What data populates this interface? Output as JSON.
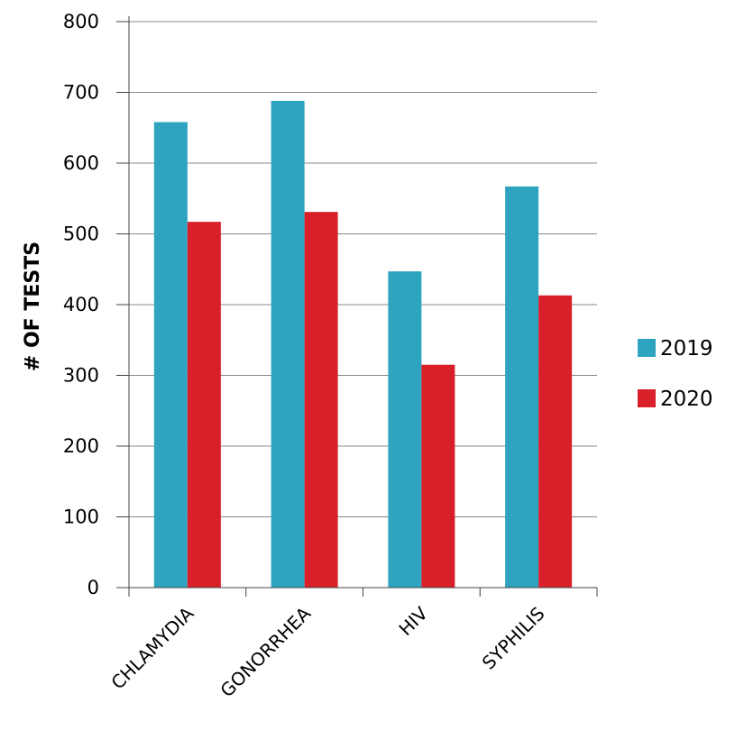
{
  "chart_data": {
    "type": "bar",
    "title": "",
    "xlabel": "",
    "ylabel": "# OF TESTS",
    "categories": [
      "CHLAMYDIA",
      "GONORRHEA",
      "HIV",
      "SYPHILIS"
    ],
    "series": [
      {
        "name": "2019",
        "color": "#2fa4c1",
        "values": [
          658,
          688,
          447,
          567
        ]
      },
      {
        "name": "2020",
        "color": "#d9202a",
        "values": [
          517,
          531,
          315,
          413
        ]
      }
    ],
    "ylim": [
      0,
      800
    ],
    "yticks": [
      0,
      100,
      200,
      300,
      400,
      500,
      600,
      700,
      800
    ],
    "grid": true,
    "legend_position": "right"
  }
}
